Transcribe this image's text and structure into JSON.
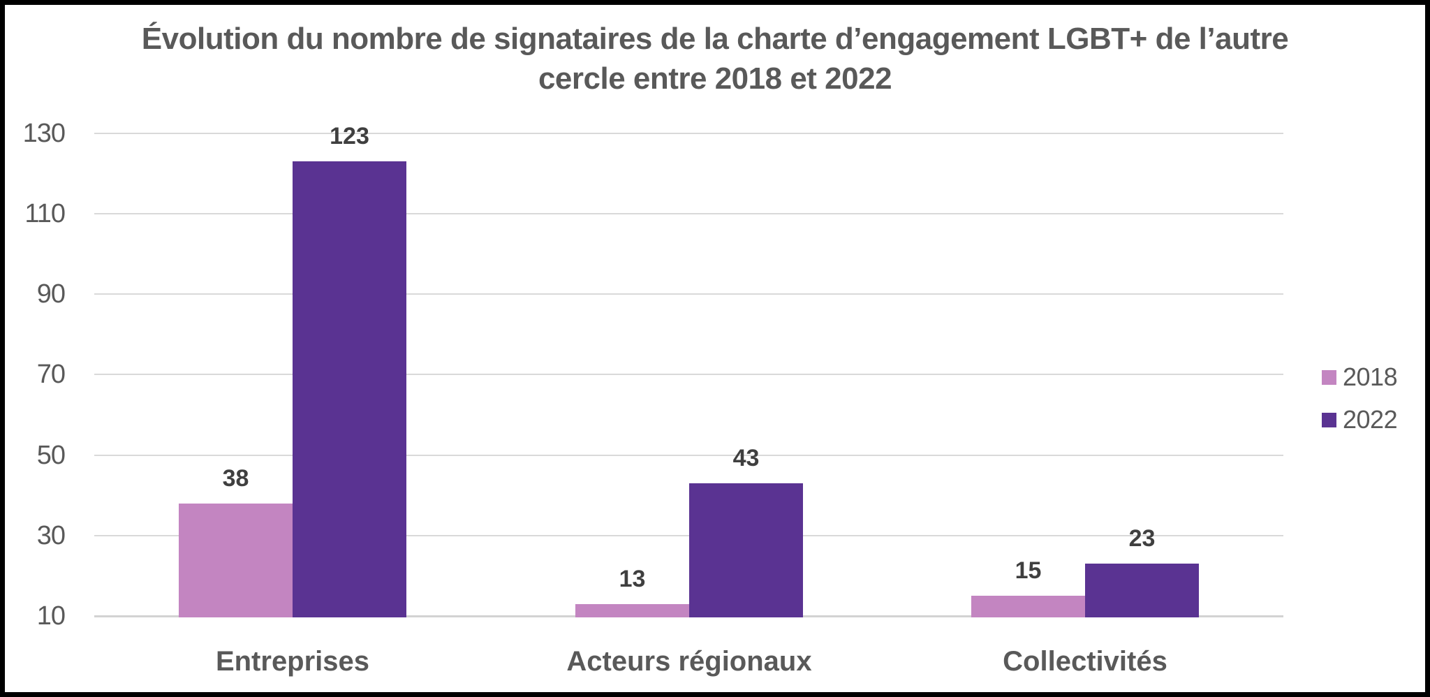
{
  "frame": {
    "background": "#FFFFFF",
    "border_color": "#000000"
  },
  "chart_data": {
    "type": "bar",
    "title": "Évolution du nombre de signataires de la charte d’engagement LGBT+ de l’autre cercle entre 2018 et 2022",
    "title_lines": [
      "Évolution du nombre de signataires de la charte d’engagement LGBT+ de l’autre",
      "cercle entre 2018 et 2022"
    ],
    "categories": [
      "Entreprises",
      "Acteurs régionaux",
      "Collectivités"
    ],
    "series": [
      {
        "name": "2018",
        "color": "#C385C1",
        "values": [
          38,
          13,
          15
        ]
      },
      {
        "name": "2022",
        "color": "#5A3392",
        "values": [
          123,
          43,
          23
        ]
      }
    ],
    "value_labels": {
      "2018": [
        38,
        13,
        15
      ],
      "2022": [
        123,
        43,
        23
      ]
    },
    "y_ticks": [
      10,
      30,
      50,
      70,
      90,
      110,
      130
    ],
    "ylim": [
      10,
      130
    ],
    "bars_baseline_value": 10,
    "grid": true,
    "legend_position": "right",
    "xlabel": "",
    "ylabel": "",
    "colors": {
      "text": "#595959",
      "value_label_text": "#3F3F3F",
      "gridline": "#D9D9D9"
    }
  }
}
